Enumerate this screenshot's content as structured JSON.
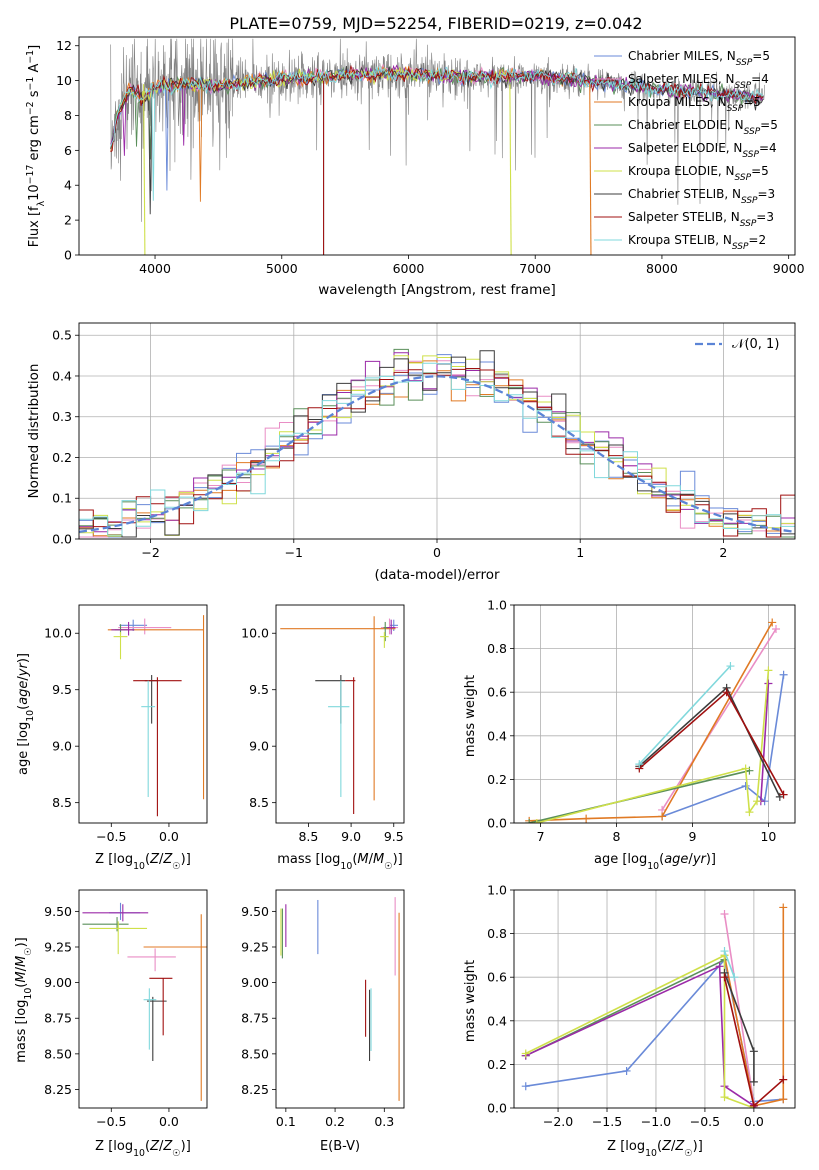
{
  "figure": {
    "title": "PLATE=0759, MJD=52254, FIBERID=0219, z=0.042"
  },
  "palette": [
    "#6a8ad8",
    "#e98ec5",
    "#e07a24",
    "#5a8f5a",
    "#9b2aa8",
    "#cfe04a",
    "#3c3c3c",
    "#a01010",
    "#80d8dc"
  ],
  "chart_data": [
    {
      "id": "spectrum",
      "type": "line",
      "xlabel": "wavelength [Angstrom, rest frame]",
      "ylabel": "Flux [f_λ10⁻¹⁷ erg cm⁻² s⁻¹ A⁻¹]",
      "xlim": [
        3400,
        9050
      ],
      "ylim": [
        0,
        12.5
      ],
      "xticks": [
        4000,
        5000,
        6000,
        7000,
        8000,
        9000
      ],
      "yticks": [
        0,
        2,
        4,
        6,
        8,
        10,
        12
      ],
      "legend_position": "right",
      "data_envelope": {
        "x": [
          3650,
          3700,
          3800,
          3900,
          4000,
          4200,
          4500,
          5000,
          5500,
          6000,
          6500,
          7000,
          7400,
          8000,
          8400,
          8800
        ],
        "y": [
          6.0,
          8.0,
          9.5,
          9.0,
          9.6,
          9.8,
          9.7,
          10.1,
          10.3,
          10.4,
          10.2,
          10.3,
          10.0,
          9.5,
          9.3,
          9.0
        ]
      },
      "series": [
        {
          "name": "Chabrier MILES, N_SSP=5",
          "label_main": "Chabrier MILES, N",
          "label_sub": "SSP",
          "label_end": "=5",
          "color": "#6a8ad8"
        },
        {
          "name": "Salpeter MILES, N_SSP=4",
          "label_main": "Salpeter MILES, N",
          "label_sub": "SSP",
          "label_end": "=4",
          "color": "#e98ec5"
        },
        {
          "name": "Kroupa MILES, N_SSP=5",
          "label_main": "Kroupa MILES, N",
          "label_sub": "SSP",
          "label_end": "=5",
          "color": "#e07a24"
        },
        {
          "name": "Chabrier ELODIE, N_SSP=5",
          "label_main": "Chabrier ELODIE, N",
          "label_sub": "SSP",
          "label_end": "=5",
          "color": "#5a8f5a"
        },
        {
          "name": "Salpeter ELODIE, N_SSP=4",
          "label_main": "Salpeter ELODIE, N",
          "label_sub": "SSP",
          "label_end": "=4",
          "color": "#9b2aa8"
        },
        {
          "name": "Kroupa ELODIE, N_SSP=5",
          "label_main": "Kroupa ELODIE, N",
          "label_sub": "SSP",
          "label_end": "=5",
          "color": "#cfe04a"
        },
        {
          "name": "Chabrier STELIB, N_SSP=3",
          "label_main": "Chabrier STELIB, N",
          "label_sub": "SSP",
          "label_end": "=3",
          "color": "#3c3c3c"
        },
        {
          "name": "Salpeter STELIB, N_SSP=3",
          "label_main": "Salpeter STELIB, N",
          "label_sub": "SSP",
          "label_end": "=3",
          "color": "#a01010"
        },
        {
          "name": "Kroupa STELIB, N_SSP=2",
          "label_main": "Kroupa STELIB, N",
          "label_sub": "SSP",
          "label_end": "=2",
          "color": "#80d8dc"
        }
      ]
    },
    {
      "id": "residuals",
      "type": "line",
      "xlabel": "(data-model)/error",
      "ylabel": "Normed distribution",
      "xlim": [
        -2.5,
        2.5
      ],
      "ylim": [
        0,
        0.53
      ],
      "xticks": [
        -2,
        -1,
        0,
        1,
        2
      ],
      "yticks": [
        0.0,
        0.1,
        0.2,
        0.3,
        0.4,
        0.5
      ],
      "grid": true,
      "legend_position": "top-right",
      "reference": {
        "name": "𝒩(0, 1)",
        "mean": 0,
        "sigma": 1,
        "color": "#5b84d6"
      },
      "bin_width": 0.1
    },
    {
      "id": "age_vs_Z",
      "type": "scatter",
      "xlabel": "Z [log₁₀(Z/Z☉)]",
      "ylabel": "age  [log₁₀(age/yr)]",
      "xlim": [
        -0.78,
        0.33
      ],
      "ylim": [
        8.32,
        10.25
      ],
      "xticks": [
        -0.5,
        0.0
      ],
      "yticks": [
        8.5,
        9.0,
        9.5,
        10.0
      ],
      "points": [
        {
          "x": -0.31,
          "y": 10.07,
          "xerr": [
            0.12,
            0.12
          ],
          "yerr": [
            0.05,
            0.05
          ]
        },
        {
          "x": -0.21,
          "y": 10.05,
          "xerr": [
            0.23,
            0.23
          ],
          "yerr": [
            0.06,
            0.08
          ]
        },
        {
          "x": 0.3,
          "y": 10.03,
          "xerr": [
            0.83,
            0.0
          ],
          "yerr": [
            1.5,
            0.13
          ]
        },
        {
          "x": -0.42,
          "y": 10.03,
          "xerr": [
            0.05,
            0.06
          ],
          "yerr": [
            0.04,
            0.05
          ]
        },
        {
          "x": -0.35,
          "y": 10.03,
          "xerr": [
            0.15,
            0.05
          ],
          "yerr": [
            0.05,
            0.07
          ]
        },
        {
          "x": -0.42,
          "y": 9.97,
          "xerr": [
            0.06,
            0.06
          ],
          "yerr": [
            0.2,
            0.04
          ]
        },
        {
          "x": -0.15,
          "y": 9.58,
          "xerr": [
            0.06,
            0.05
          ],
          "yerr": [
            0.38,
            0.05
          ]
        },
        {
          "x": -0.1,
          "y": 9.58,
          "xerr": [
            0.21,
            0.21
          ],
          "yerr": [
            1.2,
            0.03
          ]
        },
        {
          "x": -0.18,
          "y": 9.35,
          "xerr": [
            0.06,
            0.06
          ],
          "yerr": [
            0.8,
            0.23
          ]
        }
      ]
    },
    {
      "id": "age_vs_mass",
      "type": "scatter",
      "xlabel": "mass [log₁₀(M/M☉)]",
      "ylabel": "",
      "xlim": [
        8.12,
        9.62
      ],
      "ylim": [
        8.32,
        10.25
      ],
      "xticks": [
        8.5,
        9.0,
        9.5
      ],
      "yticks": [
        8.5,
        9.0,
        9.5,
        10.0
      ],
      "points": [
        {
          "x": 9.5,
          "y": 10.07,
          "xerr": [
            0.05,
            0.05
          ],
          "yerr": [
            0.05,
            0.05
          ]
        },
        {
          "x": 9.45,
          "y": 10.05,
          "xerr": [
            0.1,
            0.1
          ],
          "yerr": [
            0.06,
            0.08
          ]
        },
        {
          "x": 9.27,
          "y": 10.04,
          "xerr": [
            1.1,
            0.25
          ],
          "yerr": [
            1.52,
            0.11
          ]
        },
        {
          "x": 9.4,
          "y": 10.05,
          "xerr": [
            0.02,
            0.03
          ],
          "yerr": [
            0.12,
            0.05
          ]
        },
        {
          "x": 9.47,
          "y": 10.05,
          "xerr": [
            0.05,
            0.05
          ],
          "yerr": [
            0.06,
            0.07
          ]
        },
        {
          "x": 9.39,
          "y": 9.97,
          "xerr": [
            0.05,
            0.05
          ],
          "yerr": [
            0.1,
            0.04
          ]
        },
        {
          "x": 8.88,
          "y": 9.58,
          "xerr": [
            0.3,
            0.05
          ],
          "yerr": [
            0.38,
            0.05
          ]
        },
        {
          "x": 9.03,
          "y": 9.58,
          "xerr": [
            0.1,
            0.02
          ],
          "yerr": [
            1.18,
            0.03
          ]
        },
        {
          "x": 8.88,
          "y": 9.35,
          "xerr": [
            0.15,
            0.1
          ],
          "yerr": [
            0.8,
            0.23
          ]
        }
      ]
    },
    {
      "id": "mass_weight_vs_age",
      "type": "line",
      "xlabel": "age  [log₁₀(age/yr)]",
      "ylabel": "mass weight",
      "xlim": [
        6.65,
        10.35
      ],
      "ylim": [
        0,
        1.0
      ],
      "xticks": [
        7,
        8,
        9,
        10
      ],
      "yticks": [
        0.0,
        0.2,
        0.4,
        0.6,
        0.8,
        1.0
      ],
      "grid": true,
      "series": [
        {
          "x": [
            8.6,
            9.7,
            9.95,
            10.2
          ],
          "y": [
            0.03,
            0.17,
            0.1,
            0.68
          ]
        },
        {
          "x": [
            8.6,
            10.1
          ],
          "y": [
            0.06,
            0.89
          ]
        },
        {
          "x": [
            6.85,
            7.6,
            8.6,
            10.05
          ],
          "y": [
            0.01,
            0.02,
            0.03,
            0.92
          ]
        },
        {
          "x": [
            6.85,
            9.75
          ],
          "y": [
            0.0,
            0.24
          ]
        },
        {
          "x": [
            9.9,
            10.0
          ],
          "y": [
            0.1,
            0.64
          ]
        },
        {
          "x": [
            6.95,
            9.7,
            9.75,
            9.85,
            10.0
          ],
          "y": [
            0.0,
            0.25,
            0.05,
            0.1,
            0.7
          ]
        },
        {
          "x": [
            8.3,
            9.45,
            10.15
          ],
          "y": [
            0.26,
            0.62,
            0.12
          ]
        },
        {
          "x": [
            8.3,
            9.45,
            10.2
          ],
          "y": [
            0.25,
            0.6,
            0.13
          ]
        },
        {
          "x": [
            8.3,
            9.5
          ],
          "y": [
            0.27,
            0.72
          ]
        }
      ]
    },
    {
      "id": "mass_vs_Z",
      "type": "scatter",
      "xlabel": "Z [log₁₀(Z/Z☉)]",
      "ylabel": "mass [log₁₀(M/M☉)]",
      "xlim": [
        -0.78,
        0.33
      ],
      "ylim": [
        8.12,
        9.65
      ],
      "xticks": [
        -0.5,
        0.0
      ],
      "yticks": [
        8.25,
        8.5,
        8.75,
        9.0,
        9.25,
        9.5
      ],
      "points": [
        {
          "x": -0.42,
          "y": 9.49,
          "xerr": [
            0.1,
            0.17
          ],
          "yerr": [
            0.05,
            0.07
          ]
        },
        {
          "x": -0.12,
          "y": 9.18,
          "xerr": [
            0.24,
            0.18
          ],
          "yerr": [
            0.1,
            0.06
          ]
        },
        {
          "x": 0.28,
          "y": 9.25,
          "xerr": [
            0.5,
            0.05
          ],
          "yerr": [
            1.08,
            0.23
          ]
        },
        {
          "x": -0.45,
          "y": 9.41,
          "xerr": [
            0.3,
            0.1
          ],
          "yerr": [
            0.05,
            0.05
          ]
        },
        {
          "x": -0.4,
          "y": 9.49,
          "xerr": [
            0.35,
            0.22
          ],
          "yerr": [
            0.06,
            0.06
          ]
        },
        {
          "x": -0.44,
          "y": 9.38,
          "xerr": [
            0.25,
            0.25
          ],
          "yerr": [
            0.18,
            0.05
          ]
        },
        {
          "x": -0.14,
          "y": 8.87,
          "xerr": [
            0.05,
            0.12
          ],
          "yerr": [
            0.42,
            0.03
          ]
        },
        {
          "x": -0.05,
          "y": 9.03,
          "xerr": [
            0.12,
            0.08
          ],
          "yerr": [
            0.4,
            0.0
          ]
        },
        {
          "x": -0.17,
          "y": 8.88,
          "xerr": [
            0.05,
            0.06
          ],
          "yerr": [
            0.35,
            0.08
          ]
        }
      ]
    },
    {
      "id": "mass_vs_ebv",
      "type": "scatter",
      "xlabel": "E(B-V)",
      "ylabel": "",
      "xlim": [
        0.08,
        0.34
      ],
      "ylim": [
        8.12,
        9.65
      ],
      "xticks": [
        0.1,
        0.2,
        0.3
      ],
      "yticks": [
        8.25,
        8.5,
        8.75,
        9.0,
        9.25,
        9.5
      ],
      "points": [
        {
          "x": 0.165,
          "y": 9.4,
          "xerr": [
            0,
            0
          ],
          "yerr": [
            0.2,
            0.18
          ]
        },
        {
          "x": 0.322,
          "y": 9.32,
          "xerr": [
            0,
            0
          ],
          "yerr": [
            0.27,
            0.28
          ]
        },
        {
          "x": 0.33,
          "y": 8.83,
          "xerr": [
            0,
            0
          ],
          "yerr": [
            0.66,
            0.66
          ]
        },
        {
          "x": 0.093,
          "y": 9.37,
          "xerr": [
            0,
            0
          ],
          "yerr": [
            0.2,
            0.15
          ]
        },
        {
          "x": 0.1,
          "y": 9.4,
          "xerr": [
            0,
            0
          ],
          "yerr": [
            0.15,
            0.15
          ]
        },
        {
          "x": 0.09,
          "y": 9.35,
          "xerr": [
            0,
            0
          ],
          "yerr": [
            0.16,
            0.17
          ]
        },
        {
          "x": 0.27,
          "y": 8.7,
          "xerr": [
            0,
            0
          ],
          "yerr": [
            0.25,
            0.25
          ]
        },
        {
          "x": 0.262,
          "y": 8.82,
          "xerr": [
            0,
            0
          ],
          "yerr": [
            0.2,
            0.2
          ]
        },
        {
          "x": 0.273,
          "y": 8.72,
          "xerr": [
            0,
            0
          ],
          "yerr": [
            0.2,
            0.24
          ]
        }
      ]
    },
    {
      "id": "mass_weight_vs_Z",
      "type": "line",
      "xlabel": "Z [log₁₀(Z/Z☉)]",
      "ylabel": "mass weight",
      "xlim": [
        -2.45,
        0.42
      ],
      "ylim": [
        0,
        1.0
      ],
      "xticks": [
        -2.0,
        -1.5,
        -1.0,
        -0.5,
        0.0
      ],
      "yticks": [
        0.0,
        0.2,
        0.4,
        0.6,
        0.8,
        1.0
      ],
      "grid": true,
      "series": [
        {
          "x": [
            -2.33,
            -1.3,
            -0.3,
            0.0,
            0.3
          ],
          "y": [
            0.1,
            0.17,
            0.68,
            0.03,
            0.04
          ]
        },
        {
          "x": [
            -0.3,
            0.0
          ],
          "y": [
            0.89,
            0.02
          ]
        },
        {
          "x": [
            -0.3,
            0.0,
            0.3,
            0.3
          ],
          "y": [
            0.7,
            0.01,
            0.04,
            0.92
          ]
        },
        {
          "x": [
            -2.33,
            -0.3
          ],
          "y": [
            0.24,
            0.68
          ]
        },
        {
          "x": [
            -2.33,
            -0.35,
            -0.3,
            0.0,
            0.02
          ],
          "y": [
            0.24,
            0.65,
            0.1,
            0.01,
            0.0
          ]
        },
        {
          "x": [
            -2.33,
            -0.3,
            -0.3,
            0.0
          ],
          "y": [
            0.25,
            0.7,
            0.05,
            0.0
          ]
        },
        {
          "x": [
            -0.3,
            0.0,
            0.0
          ],
          "y": [
            0.62,
            0.26,
            0.12
          ]
        },
        {
          "x": [
            -0.3,
            0.0,
            0.3
          ],
          "y": [
            0.6,
            0.01,
            0.13
          ]
        },
        {
          "x": [
            -0.3,
            -0.2
          ],
          "y": [
            0.72,
            0.6
          ]
        }
      ]
    }
  ]
}
